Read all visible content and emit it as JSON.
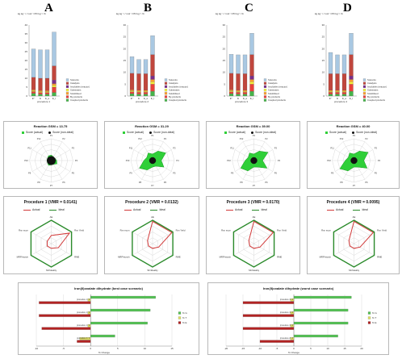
{
  "panels": [
    "A",
    "B",
    "C",
    "D"
  ],
  "colors": {
    "solvents": "#a9c8e2",
    "catalysts": "#c0463d",
    "enzymes": "#7b2c8a",
    "substrates": "#f2ee3a",
    "reagents": "#ff9e2c",
    "byproducts": "#e9413b",
    "coupled": "#46b44a",
    "score_actual": "#2fcf38",
    "score_nonideal": "#111111",
    "actual_line": "#d23a3a",
    "ideal_line": "#2a8a2a",
    "bar_nG": "#55c255",
    "bar_nT": "#e0e060",
    "bar_nE": "#b22222"
  },
  "chart_data": [
    {
      "type": "bar",
      "panel": "A",
      "ylabel": "kg kg⁻¹ / mol⁻¹ PD kg⁻¹ %",
      "xlabel": "procedure 1",
      "categories": [
        "E'\"",
        "E",
        "E_a",
        "E_t"
      ],
      "ylim": [
        0,
        40
      ],
      "series": [
        {
          "name": "Coupled products",
          "values": [
            1.5,
            1,
            1,
            2
          ]
        },
        {
          "name": "By-products",
          "values": [
            1,
            1,
            1,
            3
          ]
        },
        {
          "name": "Substrates",
          "values": [
            0.5,
            0.5,
            0.5,
            1
          ]
        },
        {
          "name": "Solubilised",
          "values": [
            0.5,
            0.5,
            0.5,
            1
          ]
        },
        {
          "name": "Insolubles (reactor)",
          "values": [
            0,
            0,
            0,
            2
          ]
        },
        {
          "name": "Catalysts",
          "values": [
            7,
            7,
            7,
            8
          ]
        },
        {
          "name": "Solvents",
          "values": [
            16,
            16,
            16,
            19
          ]
        }
      ]
    },
    {
      "type": "bar",
      "panel": "B",
      "ylabel": "kg kg⁻¹ / mol⁻¹ PD kg⁻¹ %",
      "xlabel": "procedure 2",
      "categories": [
        "E'\"",
        "E",
        "E_a",
        "E_t"
      ],
      "ylim": [
        0,
        30
      ],
      "series": [
        {
          "name": "Coupled products",
          "values": [
            1,
            0.8,
            0.8,
            2
          ]
        },
        {
          "name": "By-products",
          "values": [
            0.8,
            0.8,
            0.8,
            3
          ]
        },
        {
          "name": "Substrates",
          "values": [
            0.4,
            0.4,
            0.4,
            1
          ]
        },
        {
          "name": "Solubilised",
          "values": [
            0.4,
            0.4,
            0.4,
            1
          ]
        },
        {
          "name": "Insolubles (reactor)",
          "values": [
            0,
            0,
            0,
            1.5
          ]
        },
        {
          "name": "Catalysts",
          "values": [
            7,
            7,
            7,
            9
          ]
        },
        {
          "name": "Solvents",
          "values": [
            7,
            6,
            6,
            8
          ]
        }
      ]
    },
    {
      "type": "bar",
      "panel": "C",
      "ylabel": "kg kg⁻¹ / mol⁻¹ PD kg⁻¹ %",
      "xlabel": "procedure 3",
      "categories": [
        "E'\"",
        "E",
        "E_a",
        "E_t"
      ],
      "ylim": [
        0,
        30
      ],
      "series": [
        {
          "name": "Coupled products",
          "values": [
            1,
            0.8,
            0.8,
            2
          ]
        },
        {
          "name": "By-products",
          "values": [
            0.8,
            0.8,
            0.8,
            3
          ]
        },
        {
          "name": "Substrates",
          "values": [
            0.4,
            0.4,
            0.4,
            1
          ]
        },
        {
          "name": "Solubilised",
          "values": [
            0.4,
            0.4,
            0.4,
            1
          ]
        },
        {
          "name": "Insolubles (reactor)",
          "values": [
            0,
            0,
            0,
            1.5
          ]
        },
        {
          "name": "Catalysts",
          "values": [
            7,
            7,
            7,
            9
          ]
        },
        {
          "name": "Solvents",
          "values": [
            8,
            8,
            8,
            9
          ]
        }
      ]
    },
    {
      "type": "bar",
      "panel": "D",
      "ylabel": "kg kg⁻¹ / mol⁻¹ PD kg⁻¹ %",
      "xlabel": "procedure 4",
      "categories": [
        "E'\"",
        "E",
        "E_a",
        "E_t"
      ],
      "ylim": [
        0,
        30
      ],
      "series": [
        {
          "name": "Coupled products",
          "values": [
            0.8,
            0.8,
            0.8,
            2
          ]
        },
        {
          "name": "By-products",
          "values": [
            0.8,
            0.8,
            0.8,
            3
          ]
        },
        {
          "name": "Substrates",
          "values": [
            0.4,
            0.4,
            0.4,
            1
          ]
        },
        {
          "name": "Solubilised",
          "values": [
            0.4,
            0.4,
            0.4,
            1
          ]
        },
        {
          "name": "Insolubles (reactor)",
          "values": [
            0,
            0,
            0,
            1.5
          ]
        },
        {
          "name": "Catalysts",
          "values": [
            7,
            7,
            7,
            9
          ]
        },
        {
          "name": "Solvents",
          "values": [
            9,
            8,
            8,
            9
          ]
        }
      ]
    },
    {
      "type": "radar",
      "title": "Reaction GSM = 13.75",
      "legend": [
        "Score (actual)",
        "Score (non-ideal)"
      ],
      "axes": [
        "P1",
        "P2",
        "P3",
        "P4",
        "P5",
        "P6",
        "P7",
        "P8",
        "P9",
        "P10",
        "P11",
        "P12"
      ],
      "actual": [
        0.25,
        0.2,
        0.2,
        0.25,
        0.3,
        0.2,
        0.2,
        0.25,
        0.2,
        0.2,
        0.2,
        0.25
      ],
      "nonideal": [
        0.2,
        0.2,
        0.2,
        0.2,
        0.2,
        0.2,
        0.2,
        0.2,
        0.2,
        0.2,
        0.2,
        0.2
      ]
    },
    {
      "type": "radar",
      "title": "Reaction GSM = 31.29",
      "legend": [
        "Score (actual)",
        "Score (non-ideal)"
      ],
      "axes": [
        "P1",
        "P2",
        "P3",
        "P4",
        "P5",
        "P6",
        "P7",
        "P8",
        "P9",
        "P10",
        "P11",
        "P12"
      ],
      "actual": [
        0.3,
        0.5,
        0.7,
        0.4,
        0.6,
        0.3,
        0.3,
        0.5,
        0.7,
        0.4,
        0.3,
        0.4
      ],
      "nonideal": [
        0.15,
        0.15,
        0.15,
        0.15,
        0.15,
        0.15,
        0.15,
        0.15,
        0.15,
        0.15,
        0.15,
        0.15
      ]
    },
    {
      "type": "radar",
      "title": "Reaction GSM = 39.00",
      "legend": [
        "Score (actual)",
        "Score (non-ideal)"
      ],
      "axes": [
        "P1",
        "P2",
        "P3",
        "P4",
        "P5",
        "P6",
        "P7",
        "P8",
        "P9",
        "P10",
        "P11",
        "P12"
      ],
      "actual": [
        0.3,
        0.5,
        0.75,
        0.4,
        0.7,
        0.35,
        0.3,
        0.55,
        0.7,
        0.4,
        0.3,
        0.4
      ],
      "nonideal": [
        0.15,
        0.15,
        0.15,
        0.15,
        0.15,
        0.15,
        0.15,
        0.15,
        0.15,
        0.15,
        0.15,
        0.15
      ]
    },
    {
      "type": "radar",
      "title": "Reaction GSM = 40.00",
      "legend": [
        "Score (actual)",
        "Score (non-ideal)"
      ],
      "axes": [
        "P1",
        "P2",
        "P3",
        "P4",
        "P5",
        "P6",
        "P7",
        "P8",
        "P9",
        "P10",
        "P11",
        "P12"
      ],
      "actual": [
        0.3,
        0.5,
        0.75,
        0.45,
        0.7,
        0.35,
        0.3,
        0.55,
        0.75,
        0.4,
        0.3,
        0.4
      ],
      "nonideal": [
        0.15,
        0.15,
        0.15,
        0.15,
        0.15,
        0.15,
        0.15,
        0.15,
        0.15,
        0.15,
        0.15,
        0.15
      ]
    },
    {
      "type": "radar",
      "title": "Procedure 1 (VMR = 0.0141)",
      "legend": [
        "Actual",
        "Ideal"
      ],
      "axes": [
        "AE",
        "Rxn Yield",
        "RME",
        "SF/Ideality",
        "MRP/stoich",
        "Rxn econ"
      ],
      "actual": [
        0.35,
        0.9,
        0.35,
        0.2,
        0.2,
        0.2
      ],
      "ideal": [
        1,
        1,
        1,
        1,
        1,
        1
      ]
    },
    {
      "type": "radar",
      "title": "Procedure 2 (VMR = 0.0132)",
      "legend": [
        "Actual",
        "Ideal"
      ],
      "axes": [
        "AE",
        "Rxn Yield",
        "RME",
        "SF/Ideality",
        "MRP/stoich",
        "Rxn econ"
      ],
      "actual": [
        0.95,
        0.95,
        0.3,
        0.2,
        0.2,
        0.25
      ],
      "ideal": [
        1,
        1,
        1,
        1,
        1,
        1
      ]
    },
    {
      "type": "radar",
      "title": "Procedure 3 (VMR = 0.0170)",
      "legend": [
        "Actual",
        "Ideal"
      ],
      "axes": [
        "AE",
        "Rxn Yield",
        "RME",
        "SF/Ideality",
        "MRP/stoich",
        "Rxn econ"
      ],
      "actual": [
        0.95,
        0.95,
        0.3,
        0.2,
        0.2,
        0.25
      ],
      "ideal": [
        1,
        1,
        1,
        1,
        1,
        1
      ]
    },
    {
      "type": "radar",
      "title": "Procedure 4 (VMR = 0.0095)",
      "legend": [
        "Actual",
        "Ideal"
      ],
      "axes": [
        "AE",
        "Rxn Yield",
        "RME",
        "SF/Ideality",
        "MRP/stoich",
        "Rxn econ"
      ],
      "actual": [
        0.95,
        0.95,
        0.3,
        0.2,
        0.2,
        0.25
      ],
      "ideal": [
        1,
        1,
        1,
        1,
        1,
        1
      ]
    },
    {
      "type": "bar",
      "orientation": "horizontal",
      "title": "Iron(II)oxalate dihydrate (best case scenario)",
      "xlabel": "% Change",
      "xlim": [
        -10,
        15
      ],
      "xticks": [
        -10,
        -5,
        0,
        5,
        10,
        15
      ],
      "legend": [
        "% G",
        "% T",
        "% E"
      ],
      "groups": [
        {
          "label": "procedure 1 / 2",
          "nG": 12,
          "nT": -0.5,
          "nE": -9.5
        },
        {
          "label": "procedure 1 / 3",
          "nG": 11,
          "nT": -0.5,
          "nE": -9.5
        },
        {
          "label": "procedure 1 / 4",
          "nG": 10.5,
          "nT": -0.5,
          "nE": -9
        },
        {
          "label": "procedure 2 / 3",
          "nG": 4.5,
          "nT": -2,
          "nE": -2.5
        }
      ]
    },
    {
      "type": "bar",
      "orientation": "horizontal",
      "title": "Iron(II)oxalate dihydrate (worst case scenario)",
      "xlabel": "% Change",
      "xlim": [
        -20,
        20
      ],
      "xticks": [
        -20,
        -15,
        -10,
        -5,
        0,
        5,
        10,
        15,
        20
      ],
      "legend": [
        "% G",
        "% T",
        "% E"
      ],
      "groups": [
        {
          "label": "procedure 1 / 2",
          "nG": 17,
          "nT": -1,
          "nE": -15
        },
        {
          "label": "procedure 1 / 3",
          "nG": 16,
          "nT": -1,
          "nE": -15
        },
        {
          "label": "procedure 1 / 4",
          "nG": 16,
          "nT": -1,
          "nE": -15
        },
        {
          "label": "procedure 2 / 3",
          "nG": 13,
          "nT": -1,
          "nE": -10
        }
      ]
    }
  ]
}
